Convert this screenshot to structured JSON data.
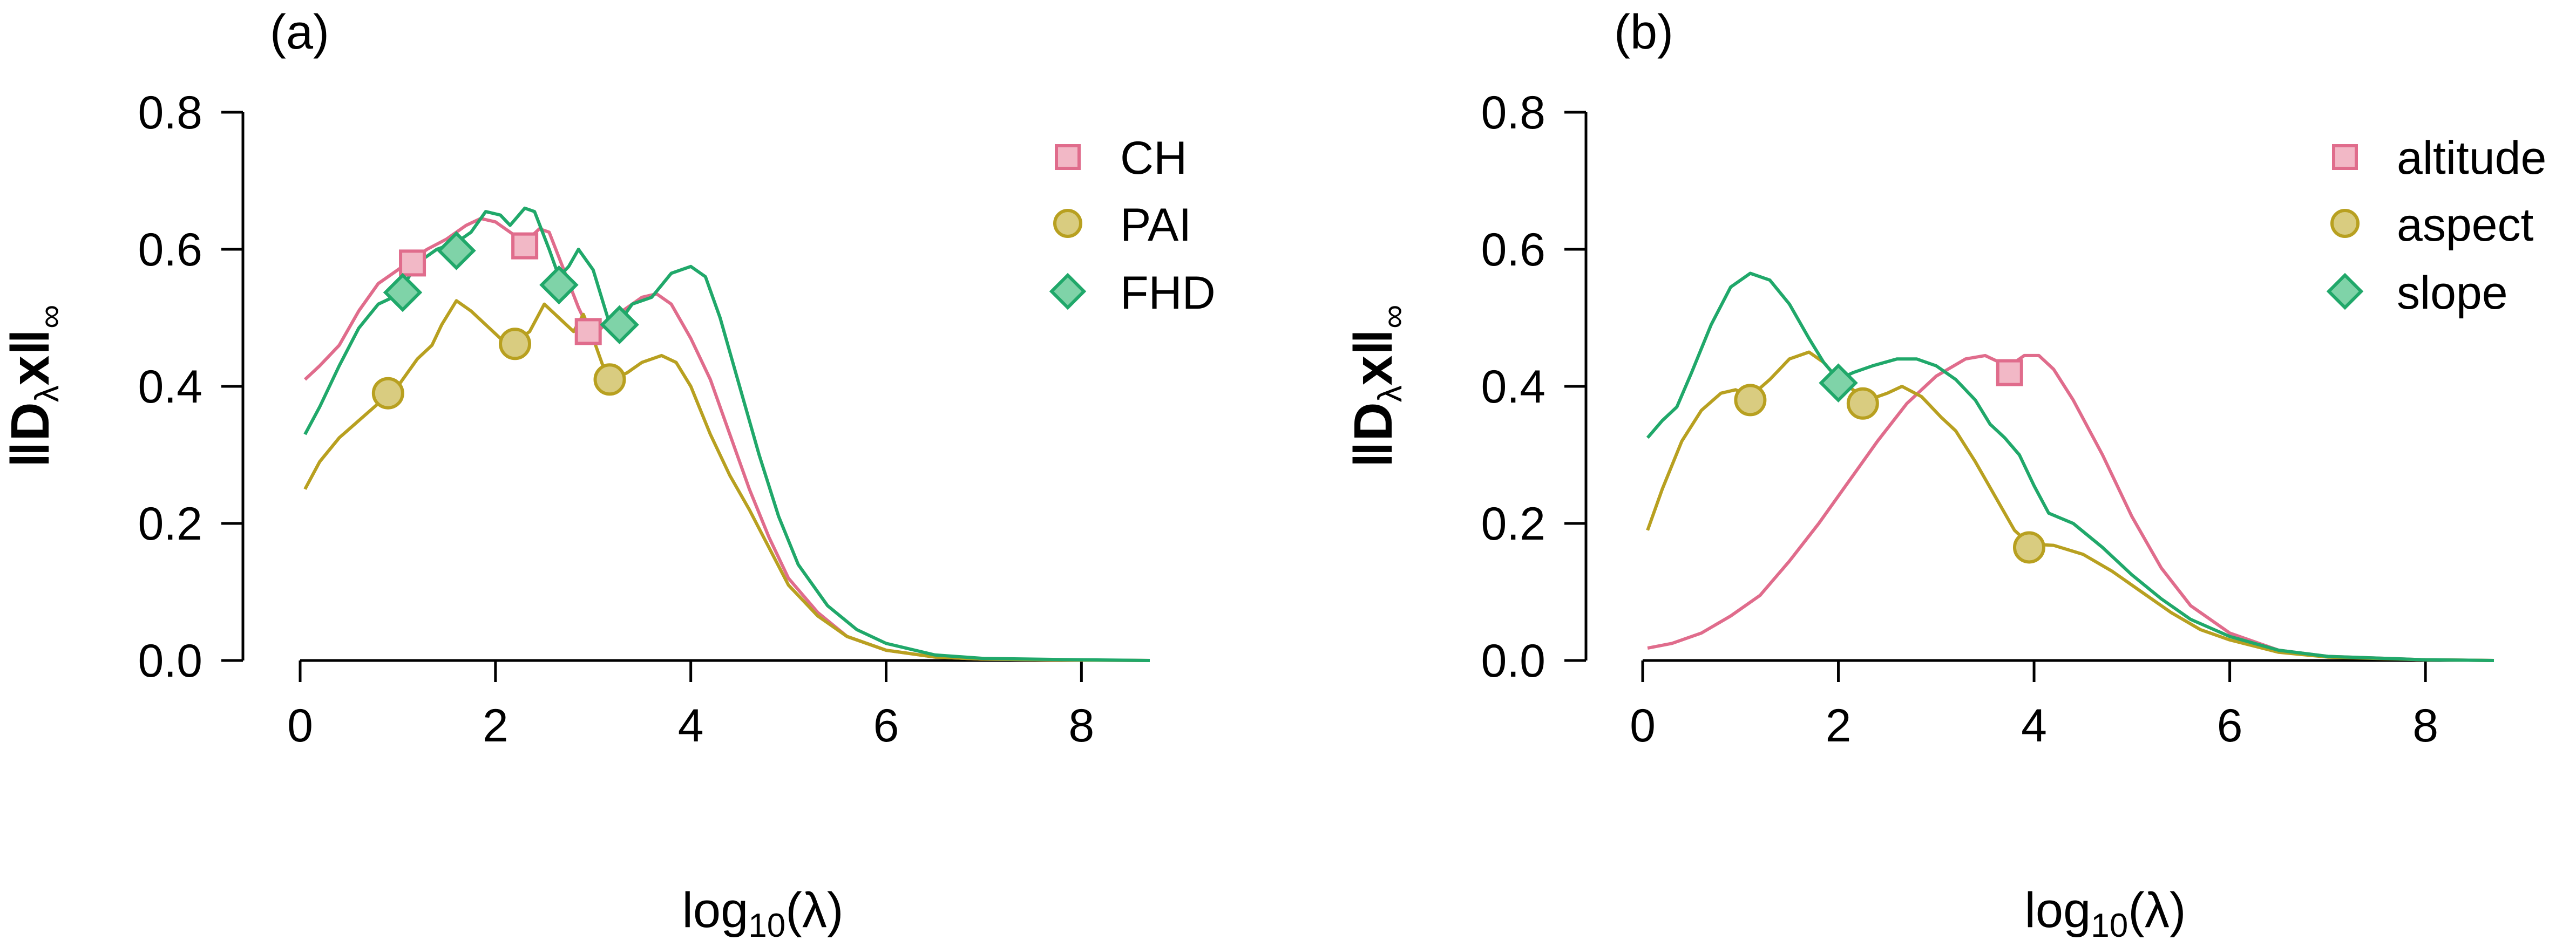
{
  "chart_data": [
    {
      "type": "line",
      "panel_label": "(a)",
      "xlabel": {
        "base": "log",
        "sub": "10",
        "arg": "(λ)"
      },
      "ylabel": {
        "norm": "‖",
        "bold": "D",
        "lambda": "λ",
        "x": "x",
        "inf": "∞"
      },
      "xlim": [
        0,
        8.7
      ],
      "ylim": [
        0,
        0.8
      ],
      "xticks": [
        "0",
        "2",
        "4",
        "6",
        "8"
      ],
      "yticks": [
        "0.0",
        "0.2",
        "0.4",
        "0.6",
        "0.8"
      ],
      "xtick_values": [
        0,
        2,
        4,
        6,
        8
      ],
      "ytick_values": [
        0,
        0.2,
        0.4,
        0.6,
        0.8
      ],
      "legend_position": "top-right",
      "series": [
        {
          "name": "CH",
          "color": "#E06C8C",
          "marker": "square",
          "points": [
            [
              0.05,
              0.41
            ],
            [
              0.2,
              0.43
            ],
            [
              0.4,
              0.46
            ],
            [
              0.6,
              0.51
            ],
            [
              0.8,
              0.55
            ],
            [
              0.95,
              0.565
            ],
            [
              1.1,
              0.58
            ],
            [
              1.3,
              0.6
            ],
            [
              1.5,
              0.615
            ],
            [
              1.7,
              0.635
            ],
            [
              1.85,
              0.645
            ],
            [
              2.0,
              0.64
            ],
            [
              2.15,
              0.625
            ],
            [
              2.3,
              0.61
            ],
            [
              2.45,
              0.63
            ],
            [
              2.55,
              0.625
            ],
            [
              2.7,
              0.57
            ],
            [
              2.85,
              0.515
            ],
            [
              2.95,
              0.485
            ],
            [
              3.05,
              0.48
            ],
            [
              3.15,
              0.495
            ],
            [
              3.3,
              0.51
            ],
            [
              3.5,
              0.53
            ],
            [
              3.65,
              0.535
            ],
            [
              3.8,
              0.52
            ],
            [
              4.0,
              0.47
            ],
            [
              4.2,
              0.41
            ],
            [
              4.4,
              0.33
            ],
            [
              4.6,
              0.25
            ],
            [
              4.8,
              0.18
            ],
            [
              5.0,
              0.12
            ],
            [
              5.3,
              0.07
            ],
            [
              5.6,
              0.035
            ],
            [
              6.0,
              0.015
            ],
            [
              6.5,
              0.005
            ],
            [
              7.0,
              0.002
            ],
            [
              8.0,
              0.0005
            ],
            [
              8.7,
              0.0
            ]
          ],
          "markers": [
            [
              1.15,
              0.58
            ],
            [
              2.3,
              0.605
            ],
            [
              2.95,
              0.48
            ]
          ]
        },
        {
          "name": "PAI",
          "color": "#B8A020",
          "marker": "circle",
          "points": [
            [
              0.05,
              0.25
            ],
            [
              0.2,
              0.29
            ],
            [
              0.4,
              0.325
            ],
            [
              0.6,
              0.35
            ],
            [
              0.8,
              0.375
            ],
            [
              0.9,
              0.385
            ],
            [
              1.0,
              0.4
            ],
            [
              1.2,
              0.44
            ],
            [
              1.35,
              0.46
            ],
            [
              1.45,
              0.49
            ],
            [
              1.6,
              0.525
            ],
            [
              1.75,
              0.51
            ],
            [
              1.9,
              0.49
            ],
            [
              2.05,
              0.47
            ],
            [
              2.2,
              0.465
            ],
            [
              2.35,
              0.48
            ],
            [
              2.5,
              0.52
            ],
            [
              2.65,
              0.5
            ],
            [
              2.8,
              0.48
            ],
            [
              2.9,
              0.505
            ],
            [
              3.0,
              0.47
            ],
            [
              3.1,
              0.43
            ],
            [
              3.2,
              0.41
            ],
            [
              3.35,
              0.42
            ],
            [
              3.5,
              0.435
            ],
            [
              3.7,
              0.445
            ],
            [
              3.85,
              0.435
            ],
            [
              4.0,
              0.4
            ],
            [
              4.2,
              0.33
            ],
            [
              4.4,
              0.27
            ],
            [
              4.6,
              0.22
            ],
            [
              4.8,
              0.165
            ],
            [
              5.0,
              0.11
            ],
            [
              5.3,
              0.065
            ],
            [
              5.6,
              0.035
            ],
            [
              6.0,
              0.015
            ],
            [
              6.5,
              0.005
            ],
            [
              7.0,
              0.002
            ],
            [
              8.0,
              0.0005
            ],
            [
              8.7,
              0.0
            ]
          ],
          "markers": [
            [
              0.9,
              0.39
            ],
            [
              2.2,
              0.462
            ],
            [
              3.17,
              0.41
            ]
          ]
        },
        {
          "name": "FHD",
          "color": "#20A86A",
          "marker": "diamond",
          "points": [
            [
              0.05,
              0.33
            ],
            [
              0.2,
              0.37
            ],
            [
              0.4,
              0.43
            ],
            [
              0.6,
              0.485
            ],
            [
              0.8,
              0.52
            ],
            [
              0.95,
              0.53
            ],
            [
              1.05,
              0.545
            ],
            [
              1.2,
              0.58
            ],
            [
              1.4,
              0.6
            ],
            [
              1.6,
              0.61
            ],
            [
              1.75,
              0.625
            ],
            [
              1.9,
              0.655
            ],
            [
              2.05,
              0.65
            ],
            [
              2.15,
              0.635
            ],
            [
              2.3,
              0.66
            ],
            [
              2.4,
              0.655
            ],
            [
              2.55,
              0.6
            ],
            [
              2.65,
              0.56
            ],
            [
              2.75,
              0.575
            ],
            [
              2.85,
              0.6
            ],
            [
              3.0,
              0.57
            ],
            [
              3.15,
              0.5
            ],
            [
              3.25,
              0.49
            ],
            [
              3.4,
              0.52
            ],
            [
              3.6,
              0.53
            ],
            [
              3.8,
              0.565
            ],
            [
              4.0,
              0.575
            ],
            [
              4.15,
              0.56
            ],
            [
              4.3,
              0.5
            ],
            [
              4.5,
              0.4
            ],
            [
              4.7,
              0.3
            ],
            [
              4.9,
              0.21
            ],
            [
              5.1,
              0.14
            ],
            [
              5.4,
              0.08
            ],
            [
              5.7,
              0.045
            ],
            [
              6.0,
              0.025
            ],
            [
              6.5,
              0.008
            ],
            [
              7.0,
              0.003
            ],
            [
              8.0,
              0.001
            ],
            [
              8.7,
              0.0
            ]
          ],
          "markers": [
            [
              1.05,
              0.537
            ],
            [
              1.6,
              0.598
            ],
            [
              2.65,
              0.548
            ],
            [
              3.27,
              0.49
            ]
          ]
        }
      ]
    },
    {
      "type": "line",
      "panel_label": "(b)",
      "xlabel": {
        "base": "log",
        "sub": "10",
        "arg": "(λ)"
      },
      "ylabel": {
        "norm": "‖",
        "bold": "D",
        "lambda": "λ",
        "x": "x",
        "inf": "∞"
      },
      "xlim": [
        0,
        8.7
      ],
      "ylim": [
        0,
        0.8
      ],
      "xticks": [
        "0",
        "2",
        "4",
        "6",
        "8"
      ],
      "yticks": [
        "0.0",
        "0.2",
        "0.4",
        "0.6",
        "0.8"
      ],
      "xtick_values": [
        0,
        2,
        4,
        6,
        8
      ],
      "ytick_values": [
        0,
        0.2,
        0.4,
        0.6,
        0.8
      ],
      "legend_position": "top-right",
      "series": [
        {
          "name": "altitude",
          "color": "#E06C8C",
          "marker": "square",
          "points": [
            [
              0.05,
              0.018
            ],
            [
              0.3,
              0.025
            ],
            [
              0.6,
              0.04
            ],
            [
              0.9,
              0.065
            ],
            [
              1.2,
              0.095
            ],
            [
              1.5,
              0.145
            ],
            [
              1.8,
              0.2
            ],
            [
              2.1,
              0.26
            ],
            [
              2.4,
              0.32
            ],
            [
              2.7,
              0.375
            ],
            [
              3.0,
              0.415
            ],
            [
              3.3,
              0.44
            ],
            [
              3.5,
              0.445
            ],
            [
              3.65,
              0.435
            ],
            [
              3.75,
              0.43
            ],
            [
              3.9,
              0.445
            ],
            [
              4.05,
              0.445
            ],
            [
              4.2,
              0.425
            ],
            [
              4.4,
              0.38
            ],
            [
              4.7,
              0.3
            ],
            [
              5.0,
              0.21
            ],
            [
              5.3,
              0.135
            ],
            [
              5.6,
              0.08
            ],
            [
              6.0,
              0.04
            ],
            [
              6.5,
              0.015
            ],
            [
              7.0,
              0.006
            ],
            [
              8.0,
              0.001
            ],
            [
              8.7,
              0.0
            ]
          ],
          "markers": [
            [
              3.75,
              0.42
            ]
          ]
        },
        {
          "name": "aspect",
          "color": "#B8A020",
          "marker": "circle",
          "points": [
            [
              0.05,
              0.19
            ],
            [
              0.2,
              0.25
            ],
            [
              0.4,
              0.32
            ],
            [
              0.6,
              0.365
            ],
            [
              0.8,
              0.39
            ],
            [
              0.95,
              0.395
            ],
            [
              1.1,
              0.385
            ],
            [
              1.3,
              0.41
            ],
            [
              1.5,
              0.44
            ],
            [
              1.7,
              0.45
            ],
            [
              1.85,
              0.435
            ],
            [
              2.0,
              0.41
            ],
            [
              2.15,
              0.395
            ],
            [
              2.3,
              0.38
            ],
            [
              2.5,
              0.39
            ],
            [
              2.65,
              0.4
            ],
            [
              2.85,
              0.385
            ],
            [
              3.05,
              0.355
            ],
            [
              3.2,
              0.335
            ],
            [
              3.4,
              0.29
            ],
            [
              3.6,
              0.24
            ],
            [
              3.8,
              0.19
            ],
            [
              3.95,
              0.17
            ],
            [
              4.2,
              0.168
            ],
            [
              4.5,
              0.155
            ],
            [
              4.8,
              0.13
            ],
            [
              5.1,
              0.1
            ],
            [
              5.4,
              0.07
            ],
            [
              5.7,
              0.045
            ],
            [
              6.0,
              0.03
            ],
            [
              6.5,
              0.012
            ],
            [
              7.0,
              0.005
            ],
            [
              8.0,
              0.001
            ],
            [
              8.7,
              0.0
            ]
          ],
          "markers": [
            [
              1.1,
              0.38
            ],
            [
              2.25,
              0.375
            ],
            [
              3.95,
              0.165
            ]
          ]
        },
        {
          "name": "slope",
          "color": "#20A86A",
          "marker": "diamond",
          "points": [
            [
              0.05,
              0.325
            ],
            [
              0.2,
              0.35
            ],
            [
              0.35,
              0.37
            ],
            [
              0.5,
              0.42
            ],
            [
              0.7,
              0.49
            ],
            [
              0.9,
              0.545
            ],
            [
              1.1,
              0.565
            ],
            [
              1.3,
              0.555
            ],
            [
              1.5,
              0.52
            ],
            [
              1.7,
              0.47
            ],
            [
              1.85,
              0.435
            ],
            [
              2.0,
              0.41
            ],
            [
              2.15,
              0.42
            ],
            [
              2.35,
              0.43
            ],
            [
              2.6,
              0.44
            ],
            [
              2.8,
              0.44
            ],
            [
              3.0,
              0.43
            ],
            [
              3.2,
              0.41
            ],
            [
              3.4,
              0.38
            ],
            [
              3.55,
              0.345
            ],
            [
              3.7,
              0.325
            ],
            [
              3.85,
              0.3
            ],
            [
              4.0,
              0.255
            ],
            [
              4.15,
              0.215
            ],
            [
              4.4,
              0.2
            ],
            [
              4.7,
              0.165
            ],
            [
              5.0,
              0.125
            ],
            [
              5.3,
              0.09
            ],
            [
              5.6,
              0.06
            ],
            [
              6.0,
              0.035
            ],
            [
              6.5,
              0.015
            ],
            [
              7.0,
              0.006
            ],
            [
              8.0,
              0.001
            ],
            [
              8.7,
              0.0
            ]
          ],
          "markers": [
            [
              2.0,
              0.405
            ]
          ]
        }
      ]
    }
  ]
}
